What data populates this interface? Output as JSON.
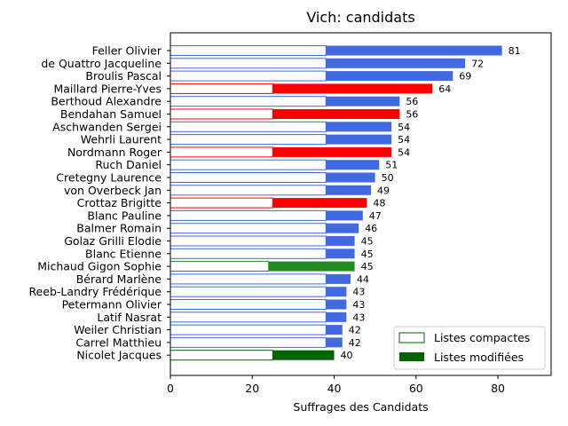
{
  "chart_data": {
    "type": "bar",
    "orientation": "horizontal",
    "stacked": true,
    "title": "Vich: candidats",
    "xlabel": "Suffrages des Candidats",
    "ylabel": "",
    "xlim": [
      0,
      93
    ],
    "xticks": [
      0,
      20,
      40,
      60,
      80
    ],
    "grid": false,
    "legend": {
      "placement": "lower-right",
      "entries": [
        {
          "label": "Listes compactes",
          "style": "outline",
          "color": "#006400"
        },
        {
          "label": "Listes modifiées",
          "style": "filled",
          "color": "#006400"
        }
      ]
    },
    "colors": {
      "blue": "#4169E1",
      "red": "#FF0000",
      "green": "#228B22",
      "darkgreen": "#006400"
    },
    "candidates": [
      {
        "name": "Feller Olivier",
        "compactes": 38,
        "modifiees": 43,
        "total": 81,
        "color": "blue"
      },
      {
        "name": "de Quattro Jacqueline",
        "compactes": 38,
        "modifiees": 34,
        "total": 72,
        "color": "blue"
      },
      {
        "name": "Broulis Pascal",
        "compactes": 38,
        "modifiees": 31,
        "total": 69,
        "color": "blue"
      },
      {
        "name": "Maillard Pierre-Yves",
        "compactes": 25,
        "modifiees": 39,
        "total": 64,
        "color": "red"
      },
      {
        "name": "Berthoud Alexandre",
        "compactes": 38,
        "modifiees": 18,
        "total": 56,
        "color": "blue"
      },
      {
        "name": "Bendahan Samuel",
        "compactes": 25,
        "modifiees": 31,
        "total": 56,
        "color": "red"
      },
      {
        "name": "Aschwanden Sergei",
        "compactes": 38,
        "modifiees": 16,
        "total": 54,
        "color": "blue"
      },
      {
        "name": "Wehrli Laurent",
        "compactes": 38,
        "modifiees": 16,
        "total": 54,
        "color": "blue"
      },
      {
        "name": "Nordmann Roger",
        "compactes": 25,
        "modifiees": 29,
        "total": 54,
        "color": "red"
      },
      {
        "name": "Ruch Daniel",
        "compactes": 38,
        "modifiees": 13,
        "total": 51,
        "color": "blue"
      },
      {
        "name": "Cretegny Laurence",
        "compactes": 38,
        "modifiees": 12,
        "total": 50,
        "color": "blue"
      },
      {
        "name": "von Overbeck Jan",
        "compactes": 38,
        "modifiees": 11,
        "total": 49,
        "color": "blue"
      },
      {
        "name": "Crottaz Brigitte",
        "compactes": 25,
        "modifiees": 23,
        "total": 48,
        "color": "red"
      },
      {
        "name": "Blanc Pauline",
        "compactes": 38,
        "modifiees": 9,
        "total": 47,
        "color": "blue"
      },
      {
        "name": "Balmer Romain",
        "compactes": 38,
        "modifiees": 8,
        "total": 46,
        "color": "blue"
      },
      {
        "name": "Golaz Grilli Elodie",
        "compactes": 38,
        "modifiees": 7,
        "total": 45,
        "color": "blue"
      },
      {
        "name": "Blanc Etienne",
        "compactes": 38,
        "modifiees": 7,
        "total": 45,
        "color": "blue"
      },
      {
        "name": "Michaud Gigon Sophie",
        "compactes": 24,
        "modifiees": 21,
        "total": 45,
        "color": "green"
      },
      {
        "name": "Bérard Marlène",
        "compactes": 38,
        "modifiees": 6,
        "total": 44,
        "color": "blue"
      },
      {
        "name": "Reeb-Landry Frédérique",
        "compactes": 38,
        "modifiees": 5,
        "total": 43,
        "color": "blue"
      },
      {
        "name": "Petermann Olivier",
        "compactes": 38,
        "modifiees": 5,
        "total": 43,
        "color": "blue"
      },
      {
        "name": "Latif Nasrat",
        "compactes": 38,
        "modifiees": 5,
        "total": 43,
        "color": "blue"
      },
      {
        "name": "Weiler Christian",
        "compactes": 38,
        "modifiees": 4,
        "total": 42,
        "color": "blue"
      },
      {
        "name": "Carrel Matthieu",
        "compactes": 38,
        "modifiees": 4,
        "total": 42,
        "color": "blue"
      },
      {
        "name": "Nicolet Jacques",
        "compactes": 25,
        "modifiees": 15,
        "total": 40,
        "color": "darkgreen"
      }
    ]
  }
}
